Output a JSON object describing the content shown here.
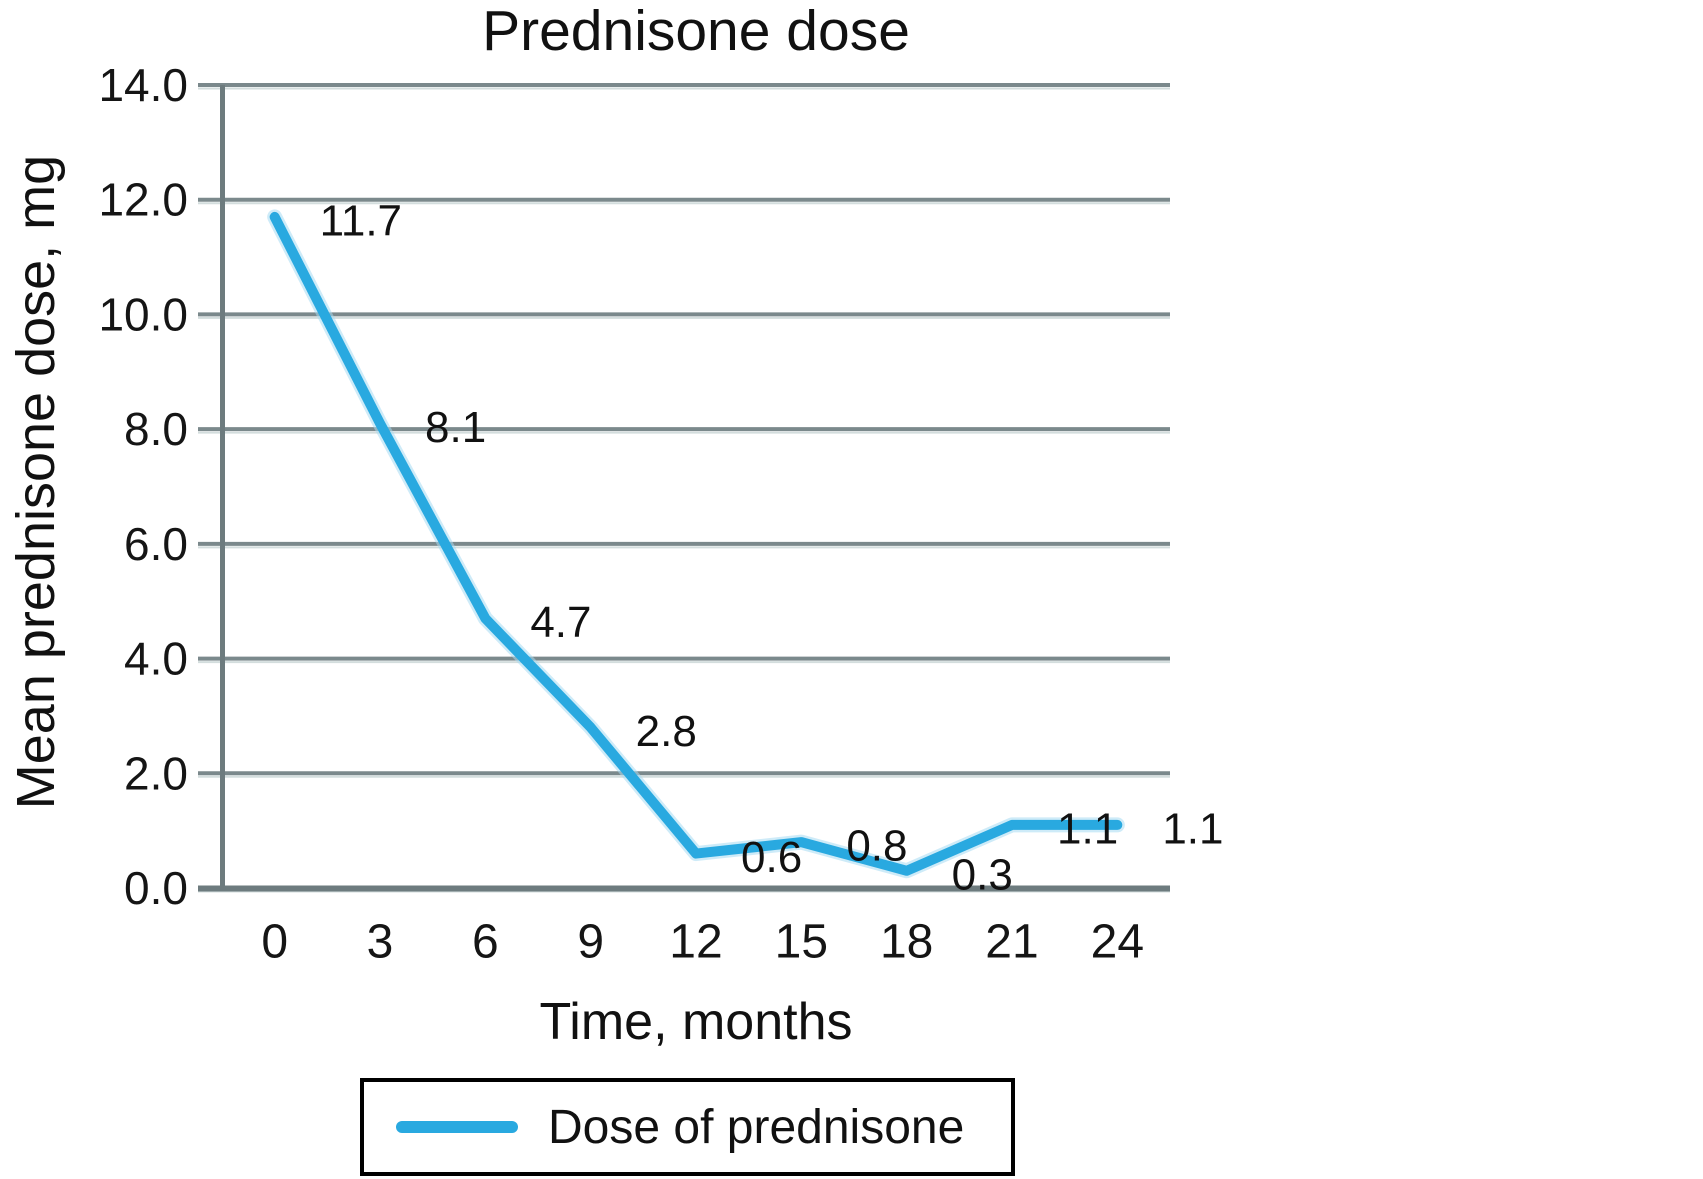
{
  "figure": {
    "title": "Prednisone dose",
    "x_axis_title": "Time, months",
    "y_axis_title": "Mean prednisone dose, mg"
  },
  "chart_data": {
    "type": "line",
    "title": "Prednisone dose",
    "xlabel": "Time, months",
    "ylabel": "Mean prednisone dose, mg",
    "categories": [
      "0",
      "3",
      "6",
      "9",
      "12",
      "15",
      "18",
      "21",
      "24"
    ],
    "series": [
      {
        "name": "Dose of prednisone",
        "values": [
          11.7,
          8.1,
          4.7,
          2.8,
          0.6,
          0.8,
          0.3,
          1.1,
          1.1
        ]
      }
    ],
    "point_labels": [
      "11.7",
      "8.1",
      "4.7",
      "2.8",
      "0.6",
      "0.8",
      "0.3",
      "1.1",
      "1.1"
    ],
    "ylim": [
      0,
      14
    ],
    "yticks": [
      {
        "v": 0,
        "label": "0.0"
      },
      {
        "v": 2,
        "label": "2.0"
      },
      {
        "v": 4,
        "label": "4.0"
      },
      {
        "v": 6,
        "label": "6.0"
      },
      {
        "v": 8,
        "label": "8.0"
      },
      {
        "v": 10,
        "label": "10.0"
      },
      {
        "v": 12,
        "label": "12.0"
      },
      {
        "v": 14,
        "label": "14.0"
      }
    ],
    "grid": "horizontal",
    "legend_position": "bottom",
    "colors": {
      "line": "#29a9e0",
      "line_halo": "#a6dbf2",
      "grid": "#7b898c",
      "grid_light": "#d3dddd",
      "axis": "#6d7b7e",
      "text": "#151515"
    }
  }
}
